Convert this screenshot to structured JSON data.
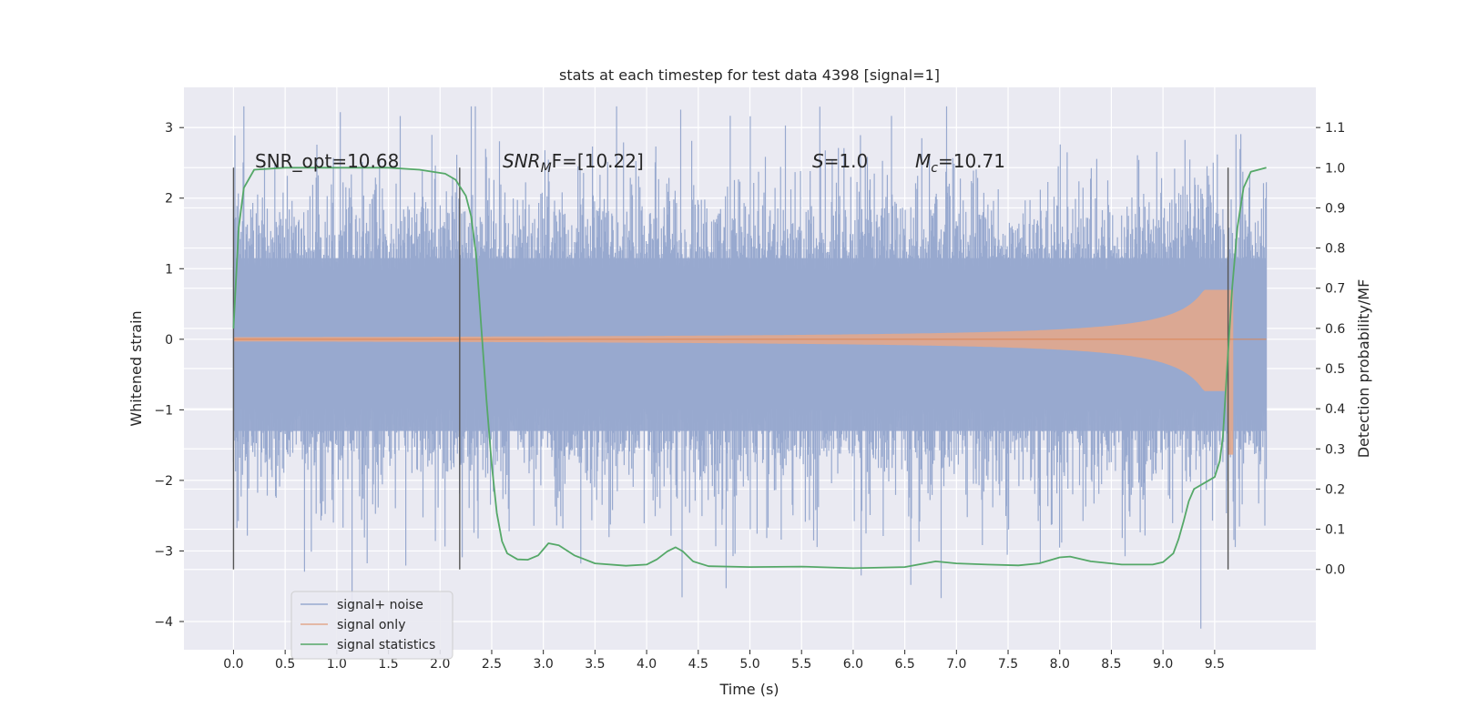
{
  "chart_data": {
    "type": "line",
    "title": "stats at each timestep for test data 4398 [signal=1]",
    "xlabel": "Time (s)",
    "ylabel": "Whitened strain",
    "ylabel_right": "Detection probability/MF",
    "xlim": [
      -0.48,
      10.48
    ],
    "ylim": [
      -4.4,
      3.57
    ],
    "ylim_right": [
      -0.2,
      1.2
    ],
    "x_ticks": [
      "0.0",
      "0.5",
      "1.0",
      "1.5",
      "2.0",
      "2.5",
      "3.0",
      "3.5",
      "4.0",
      "4.5",
      "5.0",
      "5.5",
      "6.0",
      "6.5",
      "7.0",
      "7.5",
      "8.0",
      "8.5",
      "9.0",
      "9.5"
    ],
    "y_ticks": [
      "3",
      "2",
      "1",
      "0",
      "−1",
      "−2",
      "−3",
      "−4"
    ],
    "y_right_ticks": [
      "1.1",
      "1.0",
      "0.9",
      "0.8",
      "0.7",
      "0.6",
      "0.5",
      "0.4",
      "0.3",
      "0.2",
      "0.1",
      "0.0"
    ],
    "grid": true,
    "legend_position": "lower-left",
    "duration_s": 10.0,
    "vertical_markers_x": [
      0.0,
      2.19,
      9.63
    ],
    "annotations": [
      {
        "text": "SNR_opt=10.68",
        "x": 0.2
      },
      {
        "text_parts": [
          "SNR",
          "M",
          "F=[10.22]"
        ],
        "x": 2.6
      },
      {
        "text_parts": [
          "S",
          "=1.0"
        ],
        "x": 5.6
      },
      {
        "text_parts": [
          "M",
          "c",
          "=10.71"
        ],
        "x": 6.6
      }
    ],
    "series": [
      {
        "name": "signal+ noise",
        "color": "#98a9cf",
        "kind": "noise",
        "typical_amplitude": 1.3,
        "peak_max": 3.3,
        "peak_min": -4.1
      },
      {
        "name": "signal only",
        "color": "#dd8452",
        "kind": "chirp",
        "peak_amplitude": 0.7,
        "merger_time": 9.68
      },
      {
        "name": "signal statistics",
        "color": "#55a868",
        "kind": "probability",
        "axis": "right",
        "points": [
          [
            0.0,
            0.6
          ],
          [
            0.05,
            0.85
          ],
          [
            0.1,
            0.95
          ],
          [
            0.2,
            0.995
          ],
          [
            0.5,
            1.0
          ],
          [
            1.0,
            1.0
          ],
          [
            1.5,
            1.0
          ],
          [
            1.8,
            0.995
          ],
          [
            2.05,
            0.985
          ],
          [
            2.15,
            0.97
          ],
          [
            2.25,
            0.93
          ],
          [
            2.3,
            0.88
          ],
          [
            2.35,
            0.78
          ],
          [
            2.4,
            0.6
          ],
          [
            2.45,
            0.42
          ],
          [
            2.5,
            0.26
          ],
          [
            2.55,
            0.14
          ],
          [
            2.6,
            0.07
          ],
          [
            2.65,
            0.04
          ],
          [
            2.75,
            0.025
          ],
          [
            2.85,
            0.024
          ],
          [
            2.95,
            0.035
          ],
          [
            3.05,
            0.065
          ],
          [
            3.15,
            0.06
          ],
          [
            3.3,
            0.035
          ],
          [
            3.5,
            0.015
          ],
          [
            3.8,
            0.009
          ],
          [
            4.0,
            0.012
          ],
          [
            4.1,
            0.025
          ],
          [
            4.2,
            0.045
          ],
          [
            4.28,
            0.055
          ],
          [
            4.35,
            0.045
          ],
          [
            4.45,
            0.02
          ],
          [
            4.6,
            0.008
          ],
          [
            5.0,
            0.006
          ],
          [
            5.5,
            0.007
          ],
          [
            6.0,
            0.003
          ],
          [
            6.5,
            0.006
          ],
          [
            6.8,
            0.02
          ],
          [
            7.0,
            0.015
          ],
          [
            7.3,
            0.012
          ],
          [
            7.6,
            0.01
          ],
          [
            7.8,
            0.015
          ],
          [
            8.0,
            0.03
          ],
          [
            8.1,
            0.032
          ],
          [
            8.3,
            0.02
          ],
          [
            8.6,
            0.012
          ],
          [
            8.9,
            0.012
          ],
          [
            9.0,
            0.018
          ],
          [
            9.1,
            0.04
          ],
          [
            9.15,
            0.075
          ],
          [
            9.2,
            0.12
          ],
          [
            9.25,
            0.17
          ],
          [
            9.3,
            0.2
          ],
          [
            9.4,
            0.215
          ],
          [
            9.5,
            0.23
          ],
          [
            9.55,
            0.27
          ],
          [
            9.58,
            0.33
          ],
          [
            9.62,
            0.5
          ],
          [
            9.67,
            0.7
          ],
          [
            9.72,
            0.85
          ],
          [
            9.78,
            0.95
          ],
          [
            9.85,
            0.99
          ],
          [
            10.0,
            1.0
          ]
        ]
      }
    ]
  }
}
